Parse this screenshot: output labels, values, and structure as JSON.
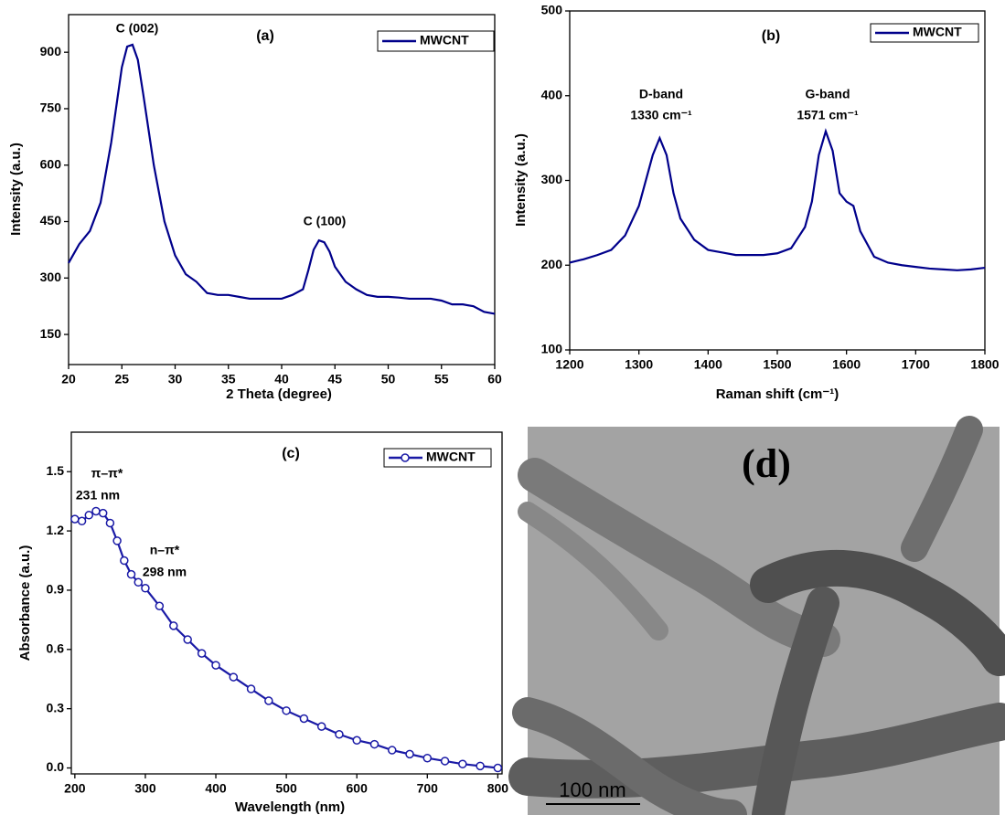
{
  "chart_data": [
    {
      "type": "line",
      "title": "(a)",
      "xlabel": "2 Theta (degree)",
      "ylabel": "Intensity (a.u.)",
      "x": [
        20,
        21,
        22,
        23,
        24,
        25,
        25.5,
        26,
        26.5,
        27,
        28,
        29,
        30,
        31,
        32,
        33,
        34,
        35,
        36,
        37,
        38,
        39,
        40,
        41,
        42,
        42.5,
        43,
        43.5,
        44,
        44.5,
        45,
        46,
        47,
        48,
        49,
        50,
        51,
        52,
        53,
        54,
        55,
        56,
        57,
        58,
        59,
        60
      ],
      "series": [
        {
          "name": "MWCNT",
          "color": "#00008b",
          "values": [
            340,
            390,
            425,
            500,
            660,
            860,
            915,
            920,
            880,
            790,
            600,
            450,
            360,
            310,
            290,
            260,
            255,
            255,
            250,
            245,
            245,
            245,
            245,
            255,
            270,
            320,
            375,
            400,
            395,
            370,
            330,
            290,
            270,
            255,
            250,
            250,
            248,
            245,
            245,
            245,
            240,
            230,
            230,
            225,
            210,
            205
          ]
        }
      ],
      "xlim": [
        20,
        60
      ],
      "xticks": [
        20,
        25,
        30,
        35,
        40,
        45,
        50,
        55,
        60
      ],
      "ylim": [
        70,
        1000
      ],
      "yticks": [
        150,
        300,
        450,
        600,
        750,
        900
      ],
      "annotations": [
        "C (002)",
        "C (100)"
      ],
      "legend": "upper right"
    },
    {
      "type": "line",
      "title": "(b)",
      "xlabel": "Raman shift (cm⁻¹)",
      "ylabel": "Intensity (a.u.)",
      "x": [
        1200,
        1220,
        1240,
        1260,
        1280,
        1300,
        1320,
        1330,
        1340,
        1350,
        1360,
        1380,
        1400,
        1420,
        1440,
        1460,
        1480,
        1500,
        1520,
        1540,
        1550,
        1560,
        1570,
        1580,
        1590,
        1600,
        1610,
        1620,
        1640,
        1660,
        1680,
        1700,
        1720,
        1740,
        1760,
        1780,
        1800
      ],
      "series": [
        {
          "name": "MWCNT",
          "color": "#00008b",
          "values": [
            203,
            207,
            212,
            218,
            235,
            270,
            330,
            350,
            330,
            285,
            255,
            230,
            218,
            215,
            212,
            212,
            212,
            214,
            220,
            245,
            275,
            330,
            358,
            335,
            285,
            275,
            270,
            240,
            210,
            203,
            200,
            198,
            196,
            195,
            194,
            195,
            197
          ]
        }
      ],
      "xlim": [
        1200,
        1800
      ],
      "xticks": [
        1200,
        1300,
        1400,
        1500,
        1600,
        1700,
        1800
      ],
      "ylim": [
        100,
        500
      ],
      "yticks": [
        100,
        200,
        300,
        400,
        500
      ],
      "annotations": [
        "D-band",
        "1330 cm⁻¹",
        "G-band",
        "1571 cm⁻¹"
      ],
      "legend": "upper right"
    },
    {
      "type": "line",
      "title": "(c)",
      "xlabel": "Wavelength (nm)",
      "ylabel": "Absorbance (a.u.)",
      "marker": "circle",
      "x": [
        200,
        210,
        220,
        230,
        240,
        250,
        260,
        270,
        280,
        290,
        300,
        320,
        340,
        360,
        380,
        400,
        425,
        450,
        475,
        500,
        525,
        550,
        575,
        600,
        625,
        650,
        675,
        700,
        725,
        750,
        775,
        800
      ],
      "series": [
        {
          "name": "MWCNT",
          "color": "#1a1aa6",
          "values": [
            1.26,
            1.25,
            1.28,
            1.3,
            1.29,
            1.24,
            1.15,
            1.05,
            0.98,
            0.94,
            0.91,
            0.82,
            0.72,
            0.65,
            0.58,
            0.52,
            0.46,
            0.4,
            0.34,
            0.29,
            0.25,
            0.21,
            0.17,
            0.14,
            0.12,
            0.09,
            0.07,
            0.05,
            0.035,
            0.02,
            0.01,
            0.0
          ]
        }
      ],
      "xlim": [
        195,
        806
      ],
      "xticks": [
        200,
        300,
        400,
        500,
        600,
        700,
        800
      ],
      "ylim": [
        -0.03,
        1.7
      ],
      "yticks": [
        {
          "value": 0,
          "label": "0.0"
        },
        0.3,
        0.6,
        0.9,
        1.2,
        1.5
      ],
      "annotations": [
        "π–π*",
        "231 nm",
        "n–π*",
        "298 nm"
      ],
      "legend": "upper right"
    }
  ],
  "image_panel": {
    "label": "(d)",
    "scale_bar": "100 nm"
  }
}
